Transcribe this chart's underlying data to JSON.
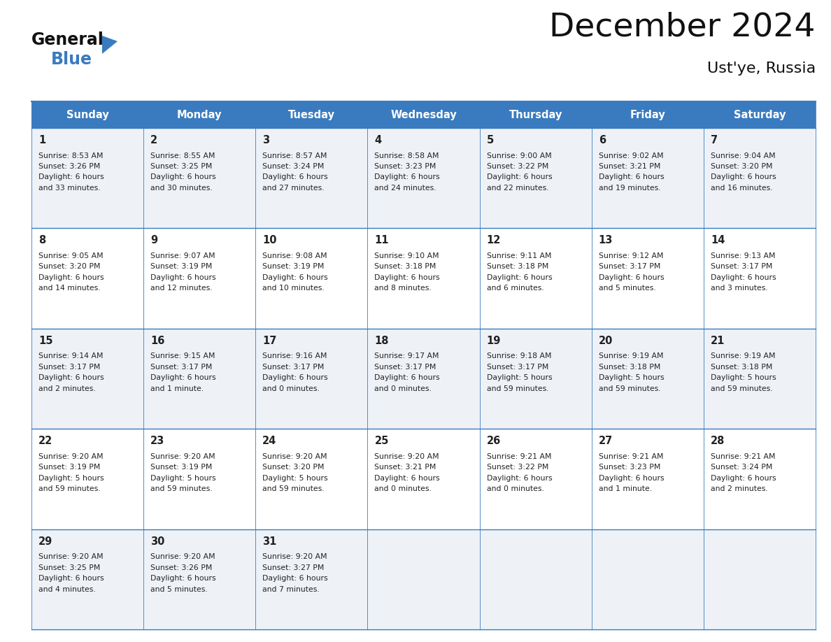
{
  "title": "December 2024",
  "subtitle": "Ust'ye, Russia",
  "header_bg": "#3a7bbf",
  "header_text": "#ffffff",
  "row_bg_light": "#eef2f7",
  "row_bg_white": "#ffffff",
  "border_color": "#3a7bbf",
  "text_color": "#222222",
  "day_names": [
    "Sunday",
    "Monday",
    "Tuesday",
    "Wednesday",
    "Thursday",
    "Friday",
    "Saturday"
  ],
  "days": [
    {
      "day": 1,
      "col": 0,
      "row": 0,
      "sunrise": "8:53 AM",
      "sunset": "3:26 PM",
      "daylight_h": "6 hours",
      "daylight_m": "and 33 minutes."
    },
    {
      "day": 2,
      "col": 1,
      "row": 0,
      "sunrise": "8:55 AM",
      "sunset": "3:25 PM",
      "daylight_h": "6 hours",
      "daylight_m": "and 30 minutes."
    },
    {
      "day": 3,
      "col": 2,
      "row": 0,
      "sunrise": "8:57 AM",
      "sunset": "3:24 PM",
      "daylight_h": "6 hours",
      "daylight_m": "and 27 minutes."
    },
    {
      "day": 4,
      "col": 3,
      "row": 0,
      "sunrise": "8:58 AM",
      "sunset": "3:23 PM",
      "daylight_h": "6 hours",
      "daylight_m": "and 24 minutes."
    },
    {
      "day": 5,
      "col": 4,
      "row": 0,
      "sunrise": "9:00 AM",
      "sunset": "3:22 PM",
      "daylight_h": "6 hours",
      "daylight_m": "and 22 minutes."
    },
    {
      "day": 6,
      "col": 5,
      "row": 0,
      "sunrise": "9:02 AM",
      "sunset": "3:21 PM",
      "daylight_h": "6 hours",
      "daylight_m": "and 19 minutes."
    },
    {
      "day": 7,
      "col": 6,
      "row": 0,
      "sunrise": "9:04 AM",
      "sunset": "3:20 PM",
      "daylight_h": "6 hours",
      "daylight_m": "and 16 minutes."
    },
    {
      "day": 8,
      "col": 0,
      "row": 1,
      "sunrise": "9:05 AM",
      "sunset": "3:20 PM",
      "daylight_h": "6 hours",
      "daylight_m": "and 14 minutes."
    },
    {
      "day": 9,
      "col": 1,
      "row": 1,
      "sunrise": "9:07 AM",
      "sunset": "3:19 PM",
      "daylight_h": "6 hours",
      "daylight_m": "and 12 minutes."
    },
    {
      "day": 10,
      "col": 2,
      "row": 1,
      "sunrise": "9:08 AM",
      "sunset": "3:19 PM",
      "daylight_h": "6 hours",
      "daylight_m": "and 10 minutes."
    },
    {
      "day": 11,
      "col": 3,
      "row": 1,
      "sunrise": "9:10 AM",
      "sunset": "3:18 PM",
      "daylight_h": "6 hours",
      "daylight_m": "and 8 minutes."
    },
    {
      "day": 12,
      "col": 4,
      "row": 1,
      "sunrise": "9:11 AM",
      "sunset": "3:18 PM",
      "daylight_h": "6 hours",
      "daylight_m": "and 6 minutes."
    },
    {
      "day": 13,
      "col": 5,
      "row": 1,
      "sunrise": "9:12 AM",
      "sunset": "3:17 PM",
      "daylight_h": "6 hours",
      "daylight_m": "and 5 minutes."
    },
    {
      "day": 14,
      "col": 6,
      "row": 1,
      "sunrise": "9:13 AM",
      "sunset": "3:17 PM",
      "daylight_h": "6 hours",
      "daylight_m": "and 3 minutes."
    },
    {
      "day": 15,
      "col": 0,
      "row": 2,
      "sunrise": "9:14 AM",
      "sunset": "3:17 PM",
      "daylight_h": "6 hours",
      "daylight_m": "and 2 minutes."
    },
    {
      "day": 16,
      "col": 1,
      "row": 2,
      "sunrise": "9:15 AM",
      "sunset": "3:17 PM",
      "daylight_h": "6 hours",
      "daylight_m": "and 1 minute."
    },
    {
      "day": 17,
      "col": 2,
      "row": 2,
      "sunrise": "9:16 AM",
      "sunset": "3:17 PM",
      "daylight_h": "6 hours",
      "daylight_m": "and 0 minutes."
    },
    {
      "day": 18,
      "col": 3,
      "row": 2,
      "sunrise": "9:17 AM",
      "sunset": "3:17 PM",
      "daylight_h": "6 hours",
      "daylight_m": "and 0 minutes."
    },
    {
      "day": 19,
      "col": 4,
      "row": 2,
      "sunrise": "9:18 AM",
      "sunset": "3:17 PM",
      "daylight_h": "5 hours",
      "daylight_m": "and 59 minutes."
    },
    {
      "day": 20,
      "col": 5,
      "row": 2,
      "sunrise": "9:19 AM",
      "sunset": "3:18 PM",
      "daylight_h": "5 hours",
      "daylight_m": "and 59 minutes."
    },
    {
      "day": 21,
      "col": 6,
      "row": 2,
      "sunrise": "9:19 AM",
      "sunset": "3:18 PM",
      "daylight_h": "5 hours",
      "daylight_m": "and 59 minutes."
    },
    {
      "day": 22,
      "col": 0,
      "row": 3,
      "sunrise": "9:20 AM",
      "sunset": "3:19 PM",
      "daylight_h": "5 hours",
      "daylight_m": "and 59 minutes."
    },
    {
      "day": 23,
      "col": 1,
      "row": 3,
      "sunrise": "9:20 AM",
      "sunset": "3:19 PM",
      "daylight_h": "5 hours",
      "daylight_m": "and 59 minutes."
    },
    {
      "day": 24,
      "col": 2,
      "row": 3,
      "sunrise": "9:20 AM",
      "sunset": "3:20 PM",
      "daylight_h": "5 hours",
      "daylight_m": "and 59 minutes."
    },
    {
      "day": 25,
      "col": 3,
      "row": 3,
      "sunrise": "9:20 AM",
      "sunset": "3:21 PM",
      "daylight_h": "6 hours",
      "daylight_m": "and 0 minutes."
    },
    {
      "day": 26,
      "col": 4,
      "row": 3,
      "sunrise": "9:21 AM",
      "sunset": "3:22 PM",
      "daylight_h": "6 hours",
      "daylight_m": "and 0 minutes."
    },
    {
      "day": 27,
      "col": 5,
      "row": 3,
      "sunrise": "9:21 AM",
      "sunset": "3:23 PM",
      "daylight_h": "6 hours",
      "daylight_m": "and 1 minute."
    },
    {
      "day": 28,
      "col": 6,
      "row": 3,
      "sunrise": "9:21 AM",
      "sunset": "3:24 PM",
      "daylight_h": "6 hours",
      "daylight_m": "and 2 minutes."
    },
    {
      "day": 29,
      "col": 0,
      "row": 4,
      "sunrise": "9:20 AM",
      "sunset": "3:25 PM",
      "daylight_h": "6 hours",
      "daylight_m": "and 4 minutes."
    },
    {
      "day": 30,
      "col": 1,
      "row": 4,
      "sunrise": "9:20 AM",
      "sunset": "3:26 PM",
      "daylight_h": "6 hours",
      "daylight_m": "and 5 minutes."
    },
    {
      "day": 31,
      "col": 2,
      "row": 4,
      "sunrise": "9:20 AM",
      "sunset": "3:27 PM",
      "daylight_h": "6 hours",
      "daylight_m": "and 7 minutes."
    }
  ],
  "fig_width": 11.88,
  "fig_height": 9.18,
  "dpi": 100
}
